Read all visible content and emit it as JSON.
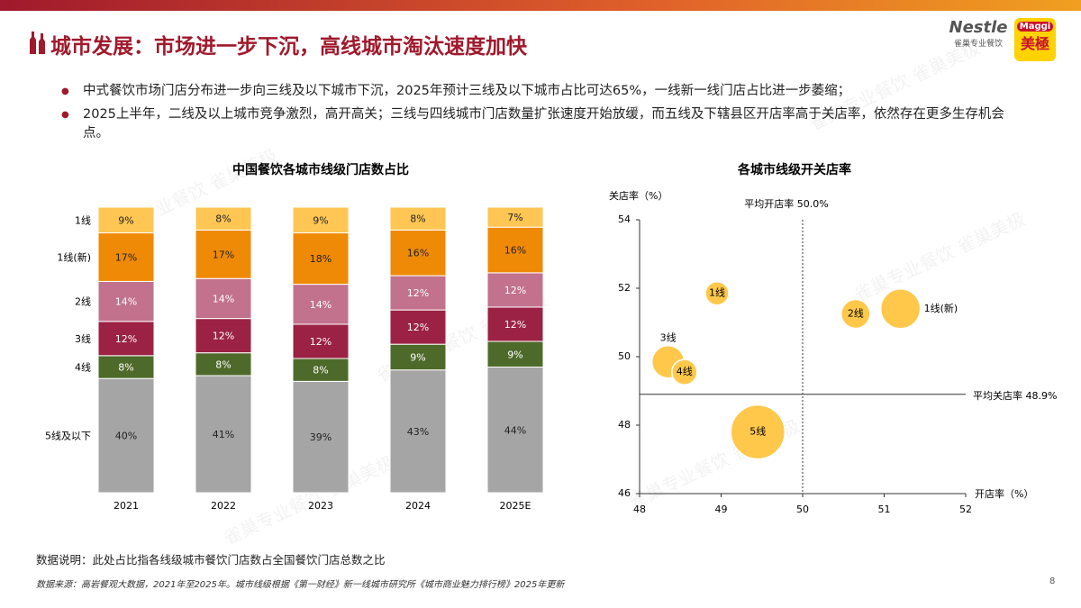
{
  "header": {
    "title": "城市发展：市场进一步下沉，高线城市淘汰速度加快",
    "logo_nestle": "Nestle",
    "logo_nestle_sub": "雀巢专业餐饮",
    "logo_maggi": "Maggi",
    "logo_maggi_sub": "美極"
  },
  "bullets": [
    "中式餐饮市场门店分布进一步向三线及以下城市下沉，2025年预计三线及以下城市占比可达65%，一线新一线门店占比进一步萎缩；",
    "2025上半年，二线及以上城市竞争激烈，高开高关；三线与四线城市门店数量扩张速度开始放缓，而五线及下辖县区开店率高于关店率，依然存在更多生存机会点。"
  ],
  "chart_data": [
    {
      "type": "stacked_bar",
      "title": "中国餐饮各城市线级门店数占比",
      "categories": [
        "2021",
        "2022",
        "2023",
        "2024",
        "2025E"
      ],
      "series": [
        {
          "name": "5线及以下",
          "color": "#a5a5a5",
          "values": [
            40,
            41,
            39,
            43,
            44
          ],
          "value_labels": [
            "40%",
            "41%",
            "39%",
            "43%",
            "44%"
          ]
        },
        {
          "name": "4线",
          "color": "#4e6a2a",
          "values": [
            8,
            8,
            8,
            9,
            9
          ],
          "value_labels": [
            "8%",
            "8%",
            "8%",
            "9%",
            "9%"
          ]
        },
        {
          "name": "3线",
          "color": "#9b2245",
          "values": [
            12,
            12,
            12,
            12,
            12
          ],
          "value_labels": [
            "12%",
            "12%",
            "12%",
            "12%",
            "12%"
          ]
        },
        {
          "name": "2线",
          "color": "#c2728c",
          "values": [
            14,
            14,
            14,
            12,
            12
          ],
          "value_labels": [
            "14%",
            "14%",
            "14%",
            "12%",
            "12%"
          ]
        },
        {
          "name": "1线(新)",
          "color": "#ef8a06",
          "values": [
            17,
            17,
            18,
            16,
            16
          ],
          "value_labels": [
            "17%",
            "17%",
            "18%",
            "16%",
            "16%"
          ]
        },
        {
          "name": "1线",
          "color": "#ffc653",
          "values": [
            9,
            8,
            9,
            8,
            7
          ],
          "value_labels": [
            "9%",
            "8%",
            "9%",
            "8%",
            "7%"
          ]
        }
      ]
    },
    {
      "type": "bubble",
      "title": "各城市线级开关店率",
      "x_label": "开店率（%）",
      "y_label": "关店率（%）",
      "xlim": [
        48,
        52
      ],
      "xticks": [
        48,
        49,
        50,
        51,
        52
      ],
      "ylim": [
        46,
        54
      ],
      "yticks": [
        46,
        48,
        50,
        52,
        54
      ],
      "color": "#ffc84a",
      "points": [
        {
          "name": "1线",
          "x": 48.95,
          "y": 51.85,
          "size": 13
        },
        {
          "name": "1线(新)",
          "x": 51.2,
          "y": 51.4,
          "size": 22
        },
        {
          "name": "2线",
          "x": 50.65,
          "y": 51.25,
          "size": 16
        },
        {
          "name": "3线",
          "x": 48.35,
          "y": 49.85,
          "size": 18
        },
        {
          "name": "4线",
          "x": 48.55,
          "y": 49.55,
          "size": 14
        },
        {
          "name": "5线",
          "x": 49.45,
          "y": 47.8,
          "size": 30
        }
      ],
      "reference_lines": [
        {
          "axis": "x",
          "value": 50.0,
          "label": "平均开店率 50.0%"
        },
        {
          "axis": "y",
          "value": 48.9,
          "label": "平均关店率 48.9%"
        }
      ]
    }
  ],
  "footer": {
    "note": "数据说明：此处占比指各线级城市餐饮门店数占全国餐饮门店总数之比",
    "source": "数据来源：高岩餐观大数据，2021年至2025年。城市线级根据《第一财经》新一线城市研究所《城市商业魅力排行榜》2025年更新",
    "page": "8"
  },
  "watermark": "雀巢专业餐饮 雀巢美极"
}
